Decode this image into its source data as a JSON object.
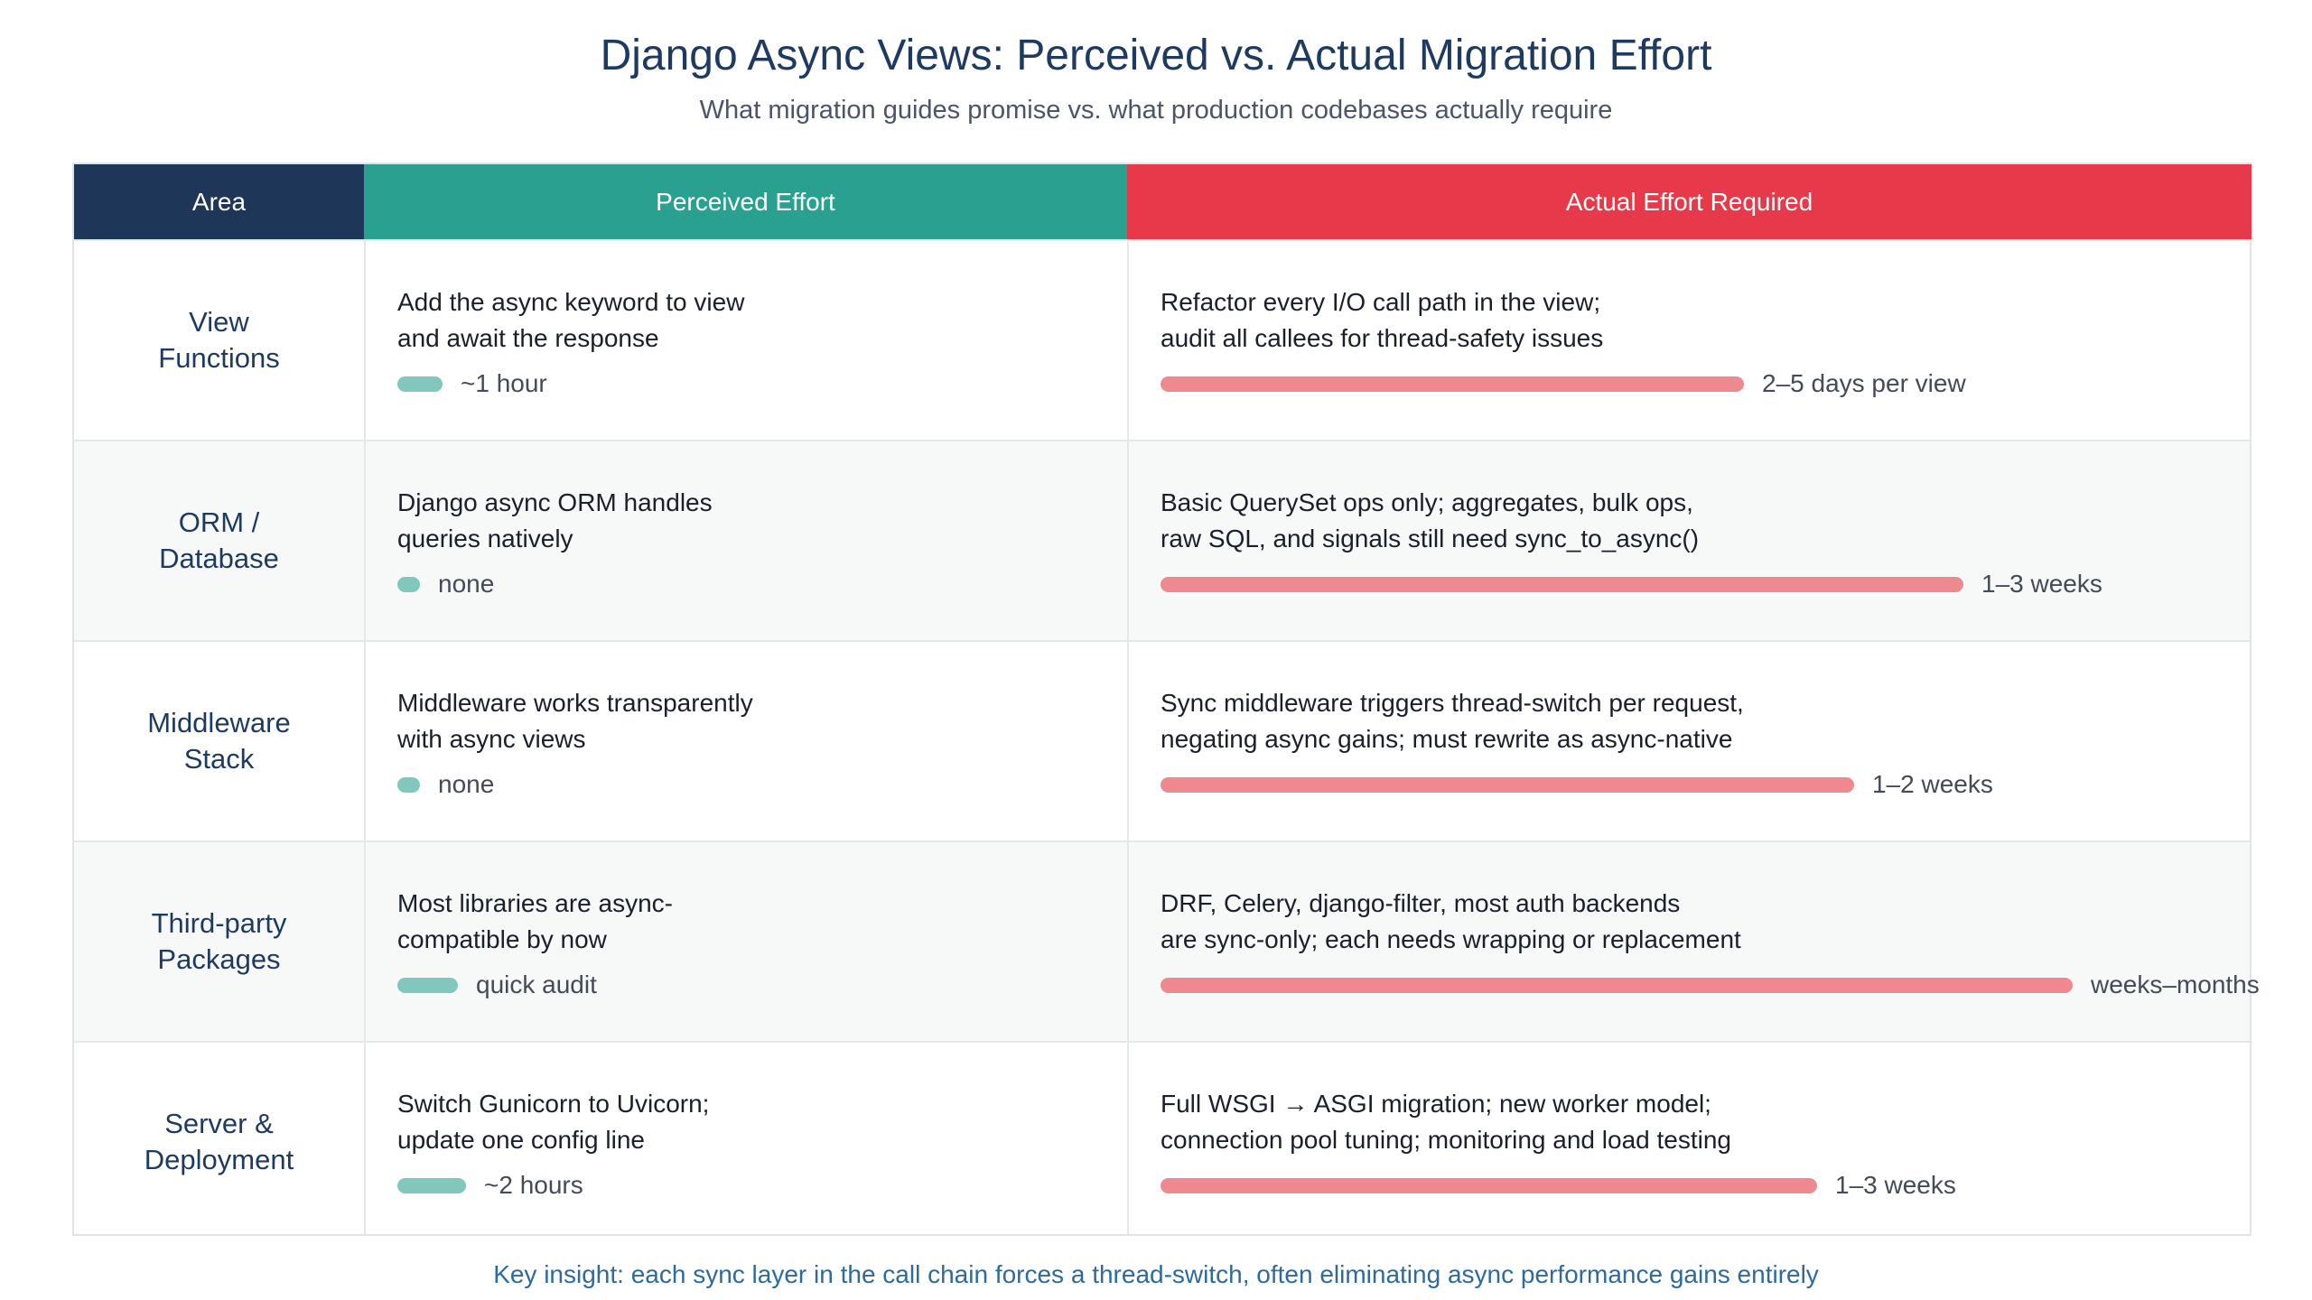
{
  "title": "Django Async Views: Perceived vs. Actual Migration Effort",
  "subtitle": "What migration guides promise vs. what production codebases actually require",
  "table": {
    "headers": {
      "area": "Area",
      "perceived": "Perceived Effort",
      "actual": "Actual Effort Required"
    },
    "rows": [
      {
        "area": "View Functions",
        "perceived": {
          "line1": "Add the async keyword to view",
          "line2": "and await the response",
          "label": "~1 hour",
          "bar_fraction": 0.12
        },
        "actual": {
          "line1": "Refactor every I/O call path in the view;",
          "line2": "audit all callees for thread-safety issues",
          "label": "2–5 days per view",
          "bar_fraction": 0.64
        }
      },
      {
        "area": "ORM / Database",
        "perceived": {
          "line1": "Django async ORM handles",
          "line2": "queries natively",
          "label": "none",
          "bar_fraction": 0.06
        },
        "actual": {
          "line1": "Basic QuerySet ops only; aggregates, bulk ops,",
          "line2": "raw SQL, and signals still need sync_to_async()",
          "label": "1–3 weeks",
          "bar_fraction": 0.88
        }
      },
      {
        "area": "Middleware Stack",
        "perceived": {
          "line1": "Middleware works transparently",
          "line2": "with async views",
          "label": "none",
          "bar_fraction": 0.06
        },
        "actual": {
          "line1": "Sync middleware triggers thread-switch per request,",
          "line2": "negating async gains; must rewrite as async-native",
          "label": "1–2 weeks",
          "bar_fraction": 0.76
        }
      },
      {
        "area": "Third-party Packages",
        "perceived": {
          "line1": "Most libraries are async-",
          "line2": "compatible by now",
          "label": "quick audit",
          "bar_fraction": 0.16
        },
        "actual": {
          "line1": "DRF, Celery, django-filter, most auth backends",
          "line2": "are sync-only; each needs wrapping or replacement",
          "label": "weeks–months",
          "bar_fraction": 1.0
        }
      },
      {
        "area": "Server & Deployment",
        "perceived": {
          "line1": "Switch Gunicorn to Uvicorn;",
          "line2": "update one config line",
          "label": "~2 hours",
          "bar_fraction": 0.18
        },
        "actual": {
          "line1": "Full WSGI → ASGI migration; new worker model;",
          "line2": "connection pool tuning; monitoring and load testing",
          "label": "1–3 weeks",
          "bar_fraction": 0.72
        }
      }
    ]
  },
  "footer": "Key insight: each sync layer in the call chain forces a thread-switch, often eliminating async performance gains entirely",
  "colors": {
    "area_header": "#1e3657",
    "perceived_header": "#2aa090",
    "actual_header": "#e63a4a",
    "perceived_bar": "#82c7bc",
    "actual_bar": "#ee8a8f"
  }
}
